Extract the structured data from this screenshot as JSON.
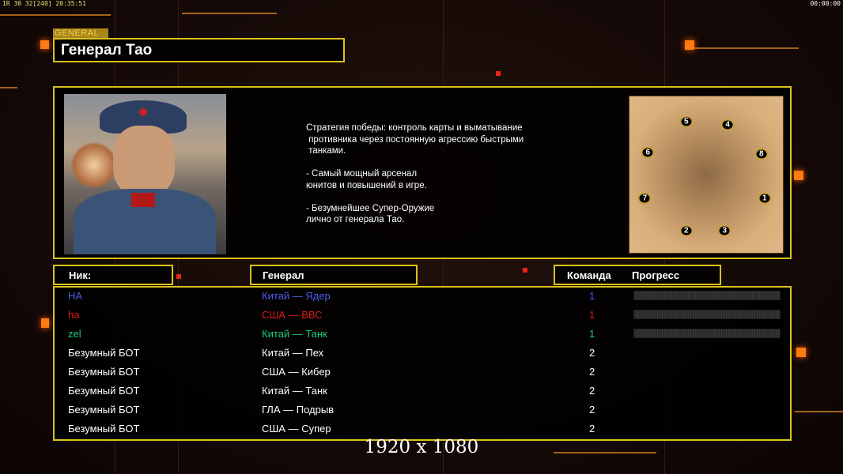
{
  "status_bar": {
    "left": "1R 30 32[240] 20:35:51",
    "right": "00:00:00"
  },
  "general_tag": "GENERAL",
  "title": "Генерал Тао",
  "description": "Стратегия победы: контроль карты и выматывание\n противника через постоянную агрессию быстрыми\n танками.\n\n- Самый мощный арсенал\nюнитов и повышений в игре.\n\n- Безумнейшее Супер-Оружие\nлично от генерала Тао.",
  "map": {
    "start_positions": [
      "1",
      "2",
      "3",
      "4",
      "5",
      "6",
      "7",
      "8"
    ]
  },
  "headers": {
    "nick": "Ник:",
    "general": "Генерал",
    "team": "Команда",
    "progress": "Прогресс"
  },
  "players": [
    {
      "nick": "HA",
      "general": "Китай — Ядер",
      "team": "1",
      "color": "#4a5ee8",
      "progress": 0
    },
    {
      "nick": "ha",
      "general": "США — ВВС",
      "team": "1",
      "color": "#e01818",
      "progress": 0
    },
    {
      "nick": "zel",
      "general": "Китай — Танк",
      "team": "1",
      "color": "#1ad07a",
      "progress": 0
    },
    {
      "nick": "Безумный БОТ",
      "general": "Китай — Пех",
      "team": "2",
      "color": "#ffffff"
    },
    {
      "nick": "Безумный БОТ",
      "general": "США — Кибер",
      "team": "2",
      "color": "#ffffff"
    },
    {
      "nick": "Безумный БОТ",
      "general": "Китай — Танк",
      "team": "2",
      "color": "#ffffff"
    },
    {
      "nick": "Безумный БОТ",
      "general": "ГЛА — Подрыв",
      "team": "2",
      "color": "#ffffff"
    },
    {
      "nick": "Безумный БОТ",
      "general": "США — Супер",
      "team": "2",
      "color": "#ffffff"
    }
  ],
  "resolution": "1920 x 1080",
  "colors": {
    "frame": "#d9c21a",
    "accent": "#ff7a12"
  }
}
